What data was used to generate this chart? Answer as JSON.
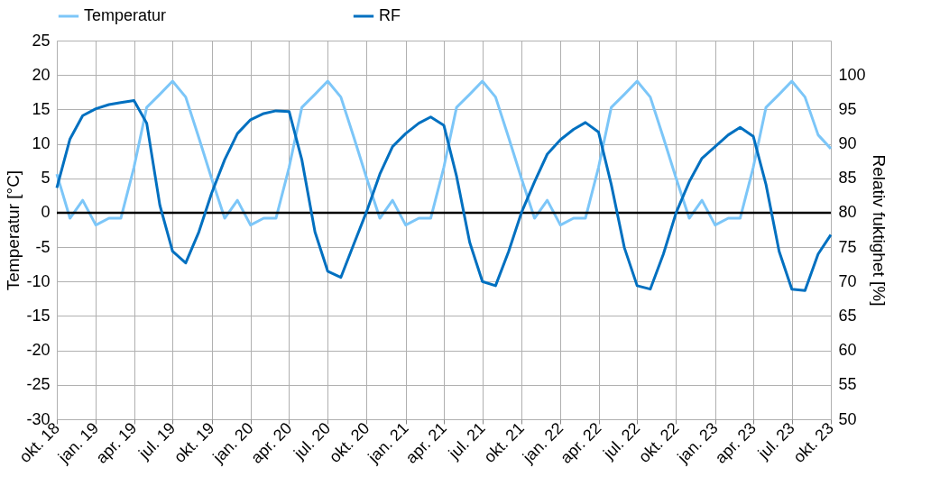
{
  "chart_data": {
    "type": "line",
    "x": [
      "2018-10",
      "2018-11",
      "2018-12",
      "2019-01",
      "2019-02",
      "2019-03",
      "2019-04",
      "2019-05",
      "2019-06",
      "2019-07",
      "2019-08",
      "2019-09",
      "2019-10",
      "2019-11",
      "2019-12",
      "2020-01",
      "2020-02",
      "2020-03",
      "2020-04",
      "2020-05",
      "2020-06",
      "2020-07",
      "2020-08",
      "2020-09",
      "2020-10",
      "2020-11",
      "2020-12",
      "2021-01",
      "2021-02",
      "2021-03",
      "2021-04",
      "2021-05",
      "2021-06",
      "2021-07",
      "2021-08",
      "2021-09",
      "2021-10",
      "2021-11",
      "2021-12",
      "2022-01",
      "2022-02",
      "2022-03",
      "2022-04",
      "2022-05",
      "2022-06",
      "2022-07",
      "2022-08",
      "2022-09",
      "2022-10",
      "2022-11",
      "2022-12",
      "2023-01",
      "2023-02",
      "2023-03",
      "2023-04",
      "2023-05",
      "2023-06",
      "2023-07",
      "2023-08",
      "2023-09",
      "2023-10"
    ],
    "series": [
      {
        "name": "Temperatur",
        "color": "#7cc6f8",
        "values": [
          5.6,
          -0.8,
          1.8,
          -1.8,
          -0.8,
          -0.8,
          6.6,
          15.3,
          17.2,
          19.1,
          16.8,
          10.9,
          5.0,
          -0.8,
          1.8,
          -1.8,
          -0.8,
          -0.8,
          6.6,
          15.3,
          17.2,
          19.1,
          16.8,
          10.9,
          5.0,
          -0.8,
          1.8,
          -1.8,
          -0.8,
          -0.8,
          6.6,
          15.3,
          17.2,
          19.1,
          16.8,
          10.9,
          5.0,
          -0.8,
          1.8,
          -1.8,
          -0.8,
          -0.8,
          6.6,
          15.3,
          17.2,
          19.1,
          16.8,
          10.9,
          5.0,
          -0.8,
          1.8,
          -1.8,
          -0.8,
          -0.8,
          6.6,
          15.3,
          17.2,
          19.1,
          16.8,
          11.3,
          9.3
        ]
      },
      {
        "name": "RF",
        "color": "#0070c0",
        "axis": "y2",
        "values": [
          83.6,
          90.7,
          94.1,
          95.1,
          95.7,
          96.0,
          96.3,
          93.0,
          81.1,
          74.4,
          72.7,
          77.2,
          82.8,
          87.7,
          91.5,
          93.5,
          94.4,
          94.8,
          94.7,
          87.7,
          77.2,
          71.5,
          70.6,
          75.5,
          80.2,
          85.6,
          89.6,
          91.5,
          93.0,
          93.9,
          92.7,
          85.3,
          75.7,
          70.0,
          69.4,
          74.4,
          80.0,
          84.5,
          88.5,
          90.6,
          92.1,
          93.1,
          91.7,
          84.1,
          74.9,
          69.4,
          68.9,
          74.0,
          80.0,
          84.5,
          87.9,
          89.6,
          91.3,
          92.4,
          91.1,
          84.1,
          74.4,
          68.9,
          68.7,
          74.0,
          76.8
        ]
      }
    ],
    "ylabel": "Temperatur [°C]",
    "y2label": "Relativ fuktighet [%]",
    "ylim": [
      -30,
      25
    ],
    "yticks": [
      -30,
      -25,
      -20,
      -15,
      -10,
      -5,
      0,
      5,
      10,
      15,
      20,
      25
    ],
    "y2lim": [
      50,
      105
    ],
    "y2ticks": [
      50,
      55,
      60,
      65,
      70,
      75,
      80,
      85,
      90,
      95,
      100
    ],
    "xlim": [
      "2018-10",
      "2023-10"
    ],
    "xticks": [
      {
        "value": "2018-10",
        "label": "okt. 18"
      },
      {
        "value": "2019-01",
        "label": "jan. 19"
      },
      {
        "value": "2019-04",
        "label": "apr. 19"
      },
      {
        "value": "2019-07",
        "label": "jul. 19"
      },
      {
        "value": "2019-10",
        "label": "okt. 19"
      },
      {
        "value": "2020-01",
        "label": "jan. 20"
      },
      {
        "value": "2020-04",
        "label": "apr. 20"
      },
      {
        "value": "2020-07",
        "label": "jul. 20"
      },
      {
        "value": "2020-10",
        "label": "okt. 20"
      },
      {
        "value": "2021-01",
        "label": "jan. 21"
      },
      {
        "value": "2021-04",
        "label": "apr. 21"
      },
      {
        "value": "2021-07",
        "label": "jul. 21"
      },
      {
        "value": "2021-10",
        "label": "okt. 21"
      },
      {
        "value": "2022-01",
        "label": "jan. 22"
      },
      {
        "value": "2022-04",
        "label": "apr. 22"
      },
      {
        "value": "2022-07",
        "label": "jul. 22"
      },
      {
        "value": "2022-10",
        "label": "okt. 22"
      },
      {
        "value": "2023-01",
        "label": "jan. 23"
      },
      {
        "value": "2023-04",
        "label": "apr. 23"
      },
      {
        "value": "2023-07",
        "label": "jul. 23"
      },
      {
        "value": "2023-10",
        "label": "okt. 23"
      }
    ],
    "ref_lines": [
      {
        "axis": "y",
        "value": 0,
        "color": "#000000"
      }
    ],
    "grid": true,
    "legend": "top",
    "marker": "none",
    "line_style": "solid"
  }
}
